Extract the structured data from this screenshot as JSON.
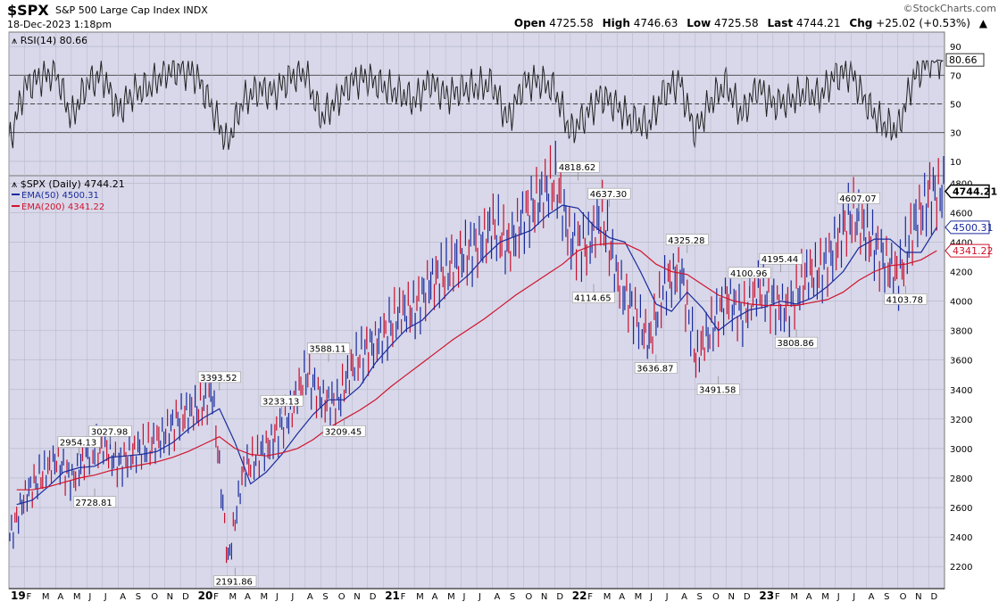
{
  "header": {
    "symbol": "$SPX",
    "name": "S&P 500 Large Cap Index INDX",
    "datetime": "18-Dec-2023 1:18pm",
    "brand": "©StockCharts.com",
    "open_label": "Open",
    "open": "4725.58",
    "high_label": "High",
    "high": "4746.63",
    "low_label": "Low",
    "low": "4725.58",
    "last_label": "Last",
    "last": "4744.21",
    "chg_label": "Chg",
    "chg": "+25.02 (+0.53%)",
    "chg_arrow": "▲"
  },
  "colors": {
    "panel_bg": "#d8d8ea",
    "price": "#1a2b9c",
    "price_down": "#c8102e",
    "ema50": "#1a2b9c",
    "ema200": "#d0142c",
    "rsi": "#222222",
    "grid": "#b4b4c8"
  },
  "chart_data": [
    {
      "type": "line",
      "title": "RSI(14) 80.66",
      "ylim": [
        0,
        100
      ],
      "yticks": [
        10,
        30,
        50,
        70,
        90
      ],
      "reference_lines": [
        30,
        50,
        70
      ],
      "last_value_label": "80.66",
      "x": [
        "2019-01",
        "2019-02",
        "2019-03",
        "2019-04",
        "2019-05",
        "2019-06",
        "2019-07",
        "2019-08",
        "2019-09",
        "2019-10",
        "2019-11",
        "2019-12",
        "2020-01",
        "2020-02",
        "2020-03",
        "2020-04",
        "2020-05",
        "2020-06",
        "2020-07",
        "2020-08",
        "2020-09",
        "2020-10",
        "2020-11",
        "2020-12",
        "2021-01",
        "2021-02",
        "2021-03",
        "2021-04",
        "2021-05",
        "2021-06",
        "2021-07",
        "2021-08",
        "2021-09",
        "2021-10",
        "2021-11",
        "2021-12",
        "2022-01",
        "2022-02",
        "2022-03",
        "2022-04",
        "2022-05",
        "2022-06",
        "2022-07",
        "2022-08",
        "2022-09",
        "2022-10",
        "2022-11",
        "2022-12",
        "2023-01",
        "2023-02",
        "2023-03",
        "2023-04",
        "2023-05",
        "2023-06",
        "2023-07",
        "2023-08",
        "2023-09",
        "2023-10",
        "2023-11",
        "2023-12"
      ],
      "values": [
        22,
        62,
        68,
        72,
        40,
        64,
        70,
        45,
        58,
        62,
        72,
        74,
        70,
        48,
        22,
        52,
        60,
        58,
        68,
        72,
        40,
        52,
        66,
        68,
        62,
        58,
        52,
        66,
        55,
        60,
        62,
        64,
        38,
        64,
        66,
        60,
        30,
        42,
        56,
        48,
        38,
        35,
        58,
        66,
        30,
        52,
        64,
        42,
        62,
        50,
        52,
        58,
        55,
        70,
        72,
        50,
        36,
        32,
        68,
        80.66
      ]
    },
    {
      "type": "line",
      "title": "$SPX (Daily) 4744.21",
      "legend": [
        "EMA(50) 4500.31",
        "EMA(200) 4341.22"
      ],
      "ylim": [
        2050,
        4850
      ],
      "yticks": [
        2200,
        2400,
        2600,
        2800,
        3000,
        3200,
        3400,
        3600,
        3800,
        4000,
        4200,
        4400,
        4600,
        4800
      ],
      "xlabels": [
        "19",
        "F",
        "M",
        "A",
        "M",
        "J",
        "J",
        "A",
        "S",
        "O",
        "N",
        "D",
        "20",
        "F",
        "M",
        "A",
        "M",
        "J",
        "J",
        "A",
        "S",
        "O",
        "N",
        "D",
        "21",
        "F",
        "M",
        "A",
        "M",
        "J",
        "J",
        "A",
        "S",
        "O",
        "N",
        "D",
        "22",
        "F",
        "M",
        "A",
        "M",
        "J",
        "J",
        "A",
        "S",
        "O",
        "N",
        "D",
        "23",
        "F",
        "M",
        "A",
        "M",
        "J",
        "J",
        "A",
        "S",
        "O",
        "N",
        "D"
      ],
      "x": [
        "2019-01",
        "2019-02",
        "2019-03",
        "2019-04",
        "2019-05",
        "2019-06",
        "2019-07",
        "2019-08",
        "2019-09",
        "2019-10",
        "2019-11",
        "2019-12",
        "2020-01",
        "2020-02",
        "2020-03",
        "2020-04",
        "2020-05",
        "2020-06",
        "2020-07",
        "2020-08",
        "2020-09",
        "2020-10",
        "2020-11",
        "2020-12",
        "2021-01",
        "2021-02",
        "2021-03",
        "2021-04",
        "2021-05",
        "2021-06",
        "2021-07",
        "2021-08",
        "2021-09",
        "2021-10",
        "2021-11",
        "2021-12",
        "2022-01",
        "2022-02",
        "2022-03",
        "2022-04",
        "2022-05",
        "2022-06",
        "2022-07",
        "2022-08",
        "2022-09",
        "2022-10",
        "2022-11",
        "2022-12",
        "2023-01",
        "2023-02",
        "2023-03",
        "2023-04",
        "2023-05",
        "2023-06",
        "2023-07",
        "2023-08",
        "2023-09",
        "2023-10",
        "2023-11",
        "2023-12"
      ],
      "series": [
        {
          "name": "$SPX",
          "values": [
            2400,
            2700,
            2800,
            2920,
            2800,
            2960,
            3010,
            2900,
            2980,
            3000,
            3110,
            3230,
            3250,
            3380,
            2240,
            2850,
            2950,
            3100,
            3230,
            3500,
            3350,
            3300,
            3550,
            3700,
            3780,
            3900,
            3950,
            4150,
            4180,
            4300,
            4400,
            4500,
            4350,
            4600,
            4700,
            4800,
            4420,
            4380,
            4550,
            4150,
            3950,
            3700,
            4100,
            4250,
            3600,
            3800,
            4050,
            3900,
            4070,
            4000,
            3950,
            4150,
            4200,
            4400,
            4580,
            4450,
            4300,
            4150,
            4500,
            4744.21
          ]
        },
        {
          "name": "EMA(50) 4500.31",
          "values": [
            2620,
            2650,
            2740,
            2840,
            2870,
            2880,
            2940,
            2950,
            2960,
            2980,
            3040,
            3130,
            3210,
            3270,
            3040,
            2760,
            2840,
            2960,
            3100,
            3230,
            3330,
            3330,
            3420,
            3580,
            3700,
            3810,
            3870,
            3980,
            4090,
            4180,
            4300,
            4400,
            4440,
            4480,
            4580,
            4650,
            4630,
            4510,
            4430,
            4400,
            4200,
            3980,
            3930,
            4060,
            3950,
            3800,
            3880,
            3940,
            3960,
            4000,
            3980,
            4020,
            4100,
            4200,
            4360,
            4420,
            4420,
            4330,
            4330,
            4500.31
          ]
        },
        {
          "name": "EMA(200) 4341.22",
          "values": [
            2720,
            2720,
            2740,
            2770,
            2800,
            2820,
            2850,
            2870,
            2890,
            2910,
            2940,
            2980,
            3030,
            3080,
            3000,
            2960,
            2950,
            2970,
            3000,
            3060,
            3140,
            3200,
            3260,
            3330,
            3420,
            3500,
            3580,
            3660,
            3740,
            3810,
            3880,
            3960,
            4040,
            4110,
            4180,
            4250,
            4340,
            4380,
            4390,
            4390,
            4340,
            4250,
            4200,
            4180,
            4110,
            4040,
            4000,
            3980,
            3970,
            3970,
            3970,
            3990,
            4010,
            4060,
            4140,
            4200,
            4240,
            4250,
            4280,
            4341.22
          ]
        }
      ],
      "annotations": [
        {
          "x": "2019-05",
          "y": 2954.13,
          "text": "2954.13"
        },
        {
          "x": "2019-06",
          "y": 2728.81,
          "text": "2728.81"
        },
        {
          "x": "2019-07",
          "y": 3027.98,
          "text": "3027.98"
        },
        {
          "x": "2020-02",
          "y": 3393.52,
          "text": "3393.52"
        },
        {
          "x": "2020-03",
          "y": 2191.86,
          "text": "2191.86"
        },
        {
          "x": "2020-06",
          "y": 3233.13,
          "text": "3233.13"
        },
        {
          "x": "2020-09",
          "y": 3588.11,
          "text": "3588.11"
        },
        {
          "x": "2020-10",
          "y": 3209.45,
          "text": "3209.45"
        },
        {
          "x": "2022-01",
          "y": 4818.62,
          "text": "4818.62"
        },
        {
          "x": "2022-02",
          "y": 4114.65,
          "text": "4114.65"
        },
        {
          "x": "2022-03",
          "y": 4637.3,
          "text": "4637.30"
        },
        {
          "x": "2022-06",
          "y": 3636.87,
          "text": "3636.87"
        },
        {
          "x": "2022-08",
          "y": 4325.28,
          "text": "4325.28"
        },
        {
          "x": "2022-10",
          "y": 3491.58,
          "text": "3491.58"
        },
        {
          "x": "2022-12",
          "y": 4100.96,
          "text": "4100.96"
        },
        {
          "x": "2023-02",
          "y": 4195.44,
          "text": "4195.44"
        },
        {
          "x": "2023-03",
          "y": 3808.86,
          "text": "3808.86"
        },
        {
          "x": "2023-07",
          "y": 4607.07,
          "text": "4607.07"
        },
        {
          "x": "2023-10",
          "y": 4103.78,
          "text": "4103.78"
        }
      ],
      "price_tags": [
        {
          "value": 4744.21,
          "text": "4744.21"
        },
        {
          "value": 4500.31,
          "text": "4500.31"
        },
        {
          "value": 4341.22,
          "text": "4341.22"
        }
      ]
    }
  ]
}
